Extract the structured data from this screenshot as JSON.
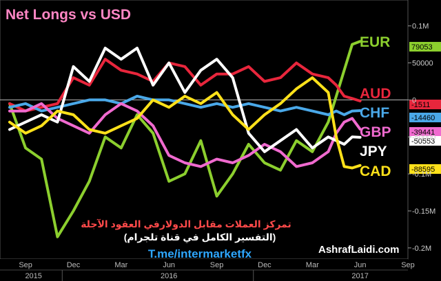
{
  "chart_data": {
    "type": "line",
    "title": "Net Longs vs USD",
    "annotation": {
      "arabic_line1": "تمركز العملات مقابل الدولارفي العقود الآجلة",
      "arabic_line2": "(التفسير الكامل في قناة تلجرام)",
      "telegram": "T.me/intermarketfx",
      "watermark": "AshrafLaidi.com"
    },
    "x_ticks": [
      "Sep",
      "Dec",
      "Mar",
      "Jun",
      "Sep",
      "Dec",
      "Mar",
      "Jun",
      "Sep"
    ],
    "x_years": [
      "2015",
      "2016",
      "2017"
    ],
    "y_ticks": [
      {
        "value": 100000,
        "label": "0.1M"
      },
      {
        "value": 50000,
        "label": "50000"
      },
      {
        "value": 0,
        "label": "0"
      },
      {
        "value": -50000,
        "label": "-50000"
      },
      {
        "value": -100000,
        "label": "-0.1M"
      },
      {
        "value": -150000,
        "label": "-0.15M"
      },
      {
        "value": -200000,
        "label": "-0.2M"
      }
    ],
    "ylim": [
      -215000,
      135000
    ],
    "x_range_months": [
      0,
      25
    ],
    "series": [
      {
        "name": "EUR",
        "color": "#8ccf2e",
        "last_value": 79053,
        "last_label": "79053",
        "x": [
          0,
          1,
          2,
          3,
          4,
          5,
          6,
          7,
          8,
          9,
          10,
          11,
          12,
          13,
          14,
          15,
          16,
          17,
          18,
          19,
          20,
          20.5,
          21,
          21.5,
          22
        ],
        "values": [
          -5000,
          -65000,
          -80000,
          -185000,
          -150000,
          -110000,
          -50000,
          -65000,
          -20000,
          -45000,
          -110000,
          -100000,
          -55000,
          -130000,
          -100000,
          -60000,
          -85000,
          -95000,
          -55000,
          -70000,
          -30000,
          5000,
          40000,
          75000,
          79053
        ]
      },
      {
        "name": "AUD",
        "color": "#e8263c",
        "last_value": -1511,
        "last_label": "-1511",
        "x": [
          0,
          1,
          2,
          3,
          4,
          5,
          6,
          7,
          8,
          9,
          10,
          11,
          12,
          13,
          14,
          15,
          16,
          17,
          18,
          19,
          20,
          20.5,
          21,
          21.5,
          22
        ],
        "values": [
          -5000,
          -15000,
          -10000,
          -5000,
          30000,
          20000,
          55000,
          40000,
          35000,
          25000,
          50000,
          45000,
          20000,
          35000,
          35000,
          45000,
          25000,
          30000,
          50000,
          35000,
          30000,
          20000,
          5000,
          2000,
          -1511
        ]
      },
      {
        "name": "CHF",
        "color": "#4aa8e8",
        "last_value": -14460,
        "last_label": "-14460",
        "x": [
          0,
          1,
          2,
          3,
          4,
          5,
          6,
          7,
          8,
          9,
          10,
          11,
          12,
          13,
          14,
          15,
          16,
          17,
          18,
          19,
          20,
          20.5,
          21,
          21.5,
          22
        ],
        "values": [
          -10000,
          -5000,
          -15000,
          -10000,
          -5000,
          0,
          0,
          -5000,
          5000,
          0,
          0,
          -5000,
          -10000,
          -5000,
          -10000,
          -5000,
          -10000,
          -15000,
          -10000,
          -15000,
          -20000,
          -15000,
          -20000,
          -15000,
          -14460
        ]
      },
      {
        "name": "GBP",
        "color": "#f06acf",
        "last_value": -39441,
        "last_label": "-39441",
        "x": [
          0,
          1,
          2,
          3,
          4,
          5,
          6,
          7,
          8,
          9,
          10,
          11,
          12,
          13,
          14,
          15,
          16,
          17,
          18,
          19,
          20,
          20.5,
          21,
          21.5,
          22
        ],
        "values": [
          -15000,
          -15000,
          -5000,
          -25000,
          -35000,
          -45000,
          -20000,
          -5000,
          -15000,
          -35000,
          -75000,
          -85000,
          -90000,
          -80000,
          -85000,
          -75000,
          -60000,
          -70000,
          -90000,
          -85000,
          -70000,
          -45000,
          -30000,
          -25000,
          -39441
        ]
      },
      {
        "name": "JPY",
        "color": "#ffffff",
        "last_value": -50553,
        "last_label": "-50553",
        "x": [
          0,
          1,
          2,
          3,
          4,
          5,
          6,
          7,
          8,
          9,
          10,
          11,
          12,
          13,
          14,
          15,
          16,
          17,
          18,
          19,
          20,
          20.5,
          21,
          21.5,
          22
        ],
        "values": [
          -40000,
          -30000,
          -20000,
          -30000,
          45000,
          25000,
          70000,
          55000,
          70000,
          20000,
          50000,
          10000,
          40000,
          55000,
          30000,
          -45000,
          -70000,
          -55000,
          -40000,
          -65000,
          -50000,
          -55000,
          -60000,
          -50000,
          -50553
        ]
      },
      {
        "name": "CAD",
        "color": "#ffe11a",
        "last_value": -88595,
        "last_label": "-88595",
        "x": [
          0,
          1,
          2,
          3,
          4,
          5,
          6,
          7,
          8,
          9,
          10,
          11,
          12,
          13,
          14,
          15,
          16,
          17,
          18,
          19,
          20,
          20.5,
          21,
          21.5,
          22
        ],
        "values": [
          -30000,
          -45000,
          -35000,
          -15000,
          -20000,
          -40000,
          -45000,
          -35000,
          -25000,
          0,
          -10000,
          5000,
          -5000,
          10000,
          -20000,
          -40000,
          -20000,
          -5000,
          15000,
          30000,
          10000,
          -50000,
          -90000,
          -92000,
          -88595
        ]
      }
    ]
  }
}
